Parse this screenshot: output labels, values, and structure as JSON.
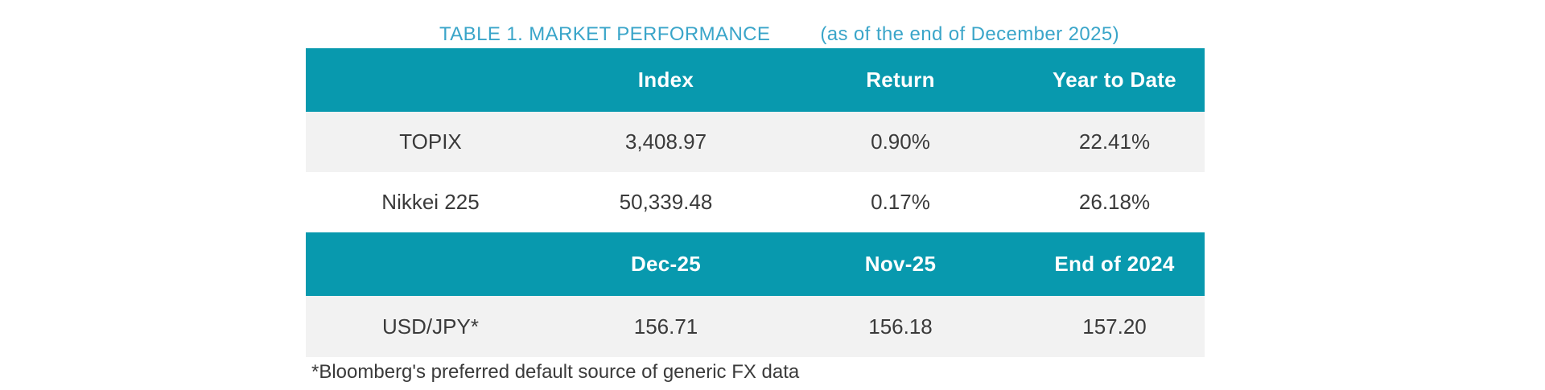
{
  "title": {
    "main": "TABLE 1. MARKET PERFORMANCE",
    "subtitle": "(as of the end of December 2025)"
  },
  "colors": {
    "header_teal": "#0899AE",
    "title_blue": "#3AA5C9",
    "row_gray": "#F2F2F2",
    "body_text": "#3A3A3A",
    "header_text": "#FFFFFF"
  },
  "table": {
    "sections": [
      {
        "header": [
          "",
          "Index",
          "Return",
          "Year to Date"
        ],
        "rows": [
          {
            "cells": [
              "TOPIX",
              "3,408.97",
              "0.90%",
              "22.41%"
            ]
          },
          {
            "cells": [
              "Nikkei 225",
              "50,339.48",
              "0.17%",
              "26.18%"
            ]
          }
        ]
      },
      {
        "header": [
          "",
          "Dec-25",
          "Nov-25",
          "End of 2024"
        ],
        "rows": [
          {
            "cells": [
              "USD/JPY*",
              "156.71",
              "156.18",
              "157.20"
            ]
          }
        ]
      }
    ]
  },
  "footnote": "*Bloomberg's preferred default source of generic FX data",
  "chart_data": {
    "type": "table",
    "title": "TABLE 1. MARKET PERFORMANCE (as of the end of December 2025)",
    "sections": [
      {
        "columns": [
          "",
          "Index",
          "Return",
          "Year to Date"
        ],
        "rows": [
          [
            "TOPIX",
            "3,408.97",
            "0.90%",
            "22.41%"
          ],
          [
            "Nikkei 225",
            "50,339.48",
            "0.17%",
            "26.18%"
          ]
        ]
      },
      {
        "columns": [
          "",
          "Dec-25",
          "Nov-25",
          "End of 2024"
        ],
        "rows": [
          [
            "USD/JPY*",
            "156.71",
            "156.18",
            "157.20"
          ]
        ]
      }
    ],
    "footnote": "*Bloomberg's preferred default source of generic FX data"
  }
}
